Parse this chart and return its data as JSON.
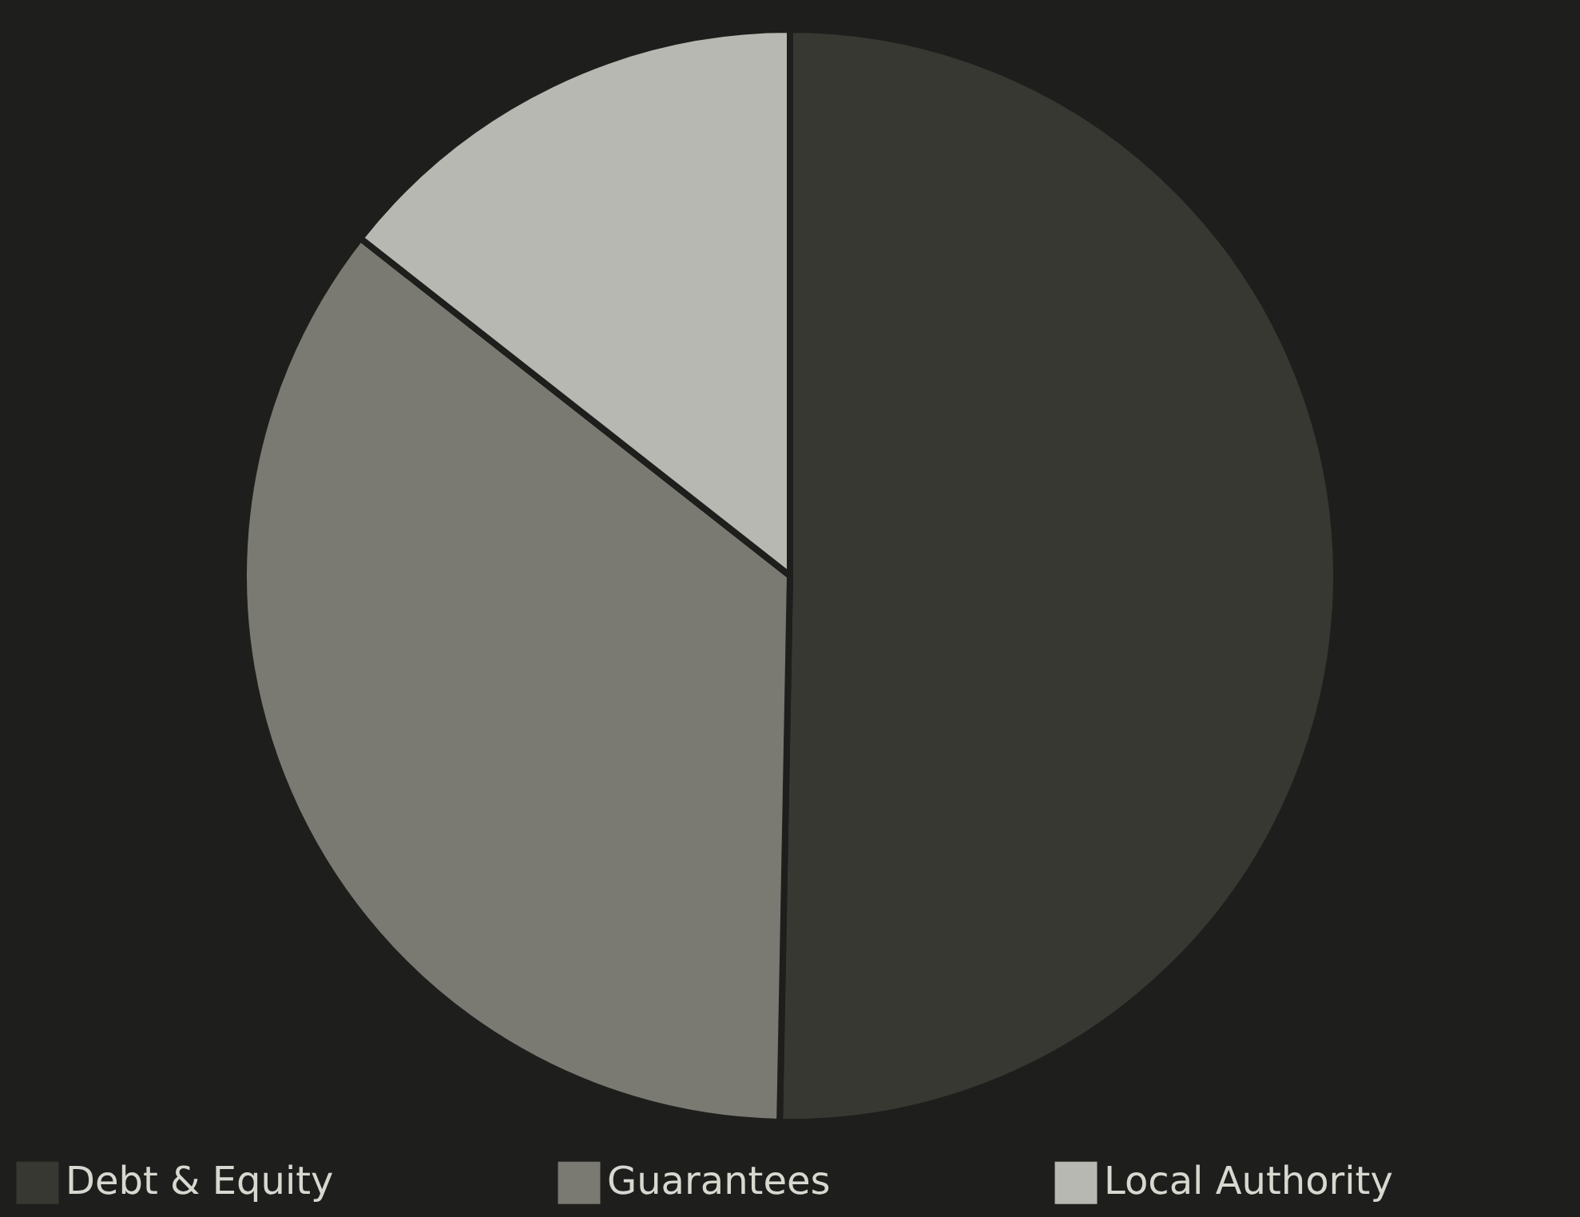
{
  "chart_data": {
    "type": "pie",
    "categories": [
      "Debt & Equity",
      "Guarantees",
      "Local Authority"
    ],
    "values": [
      50.3,
      35.3,
      14.4
    ],
    "colors": [
      "#383833",
      "#7a7a72",
      "#b8b8b2"
    ],
    "legend": "bottom"
  }
}
